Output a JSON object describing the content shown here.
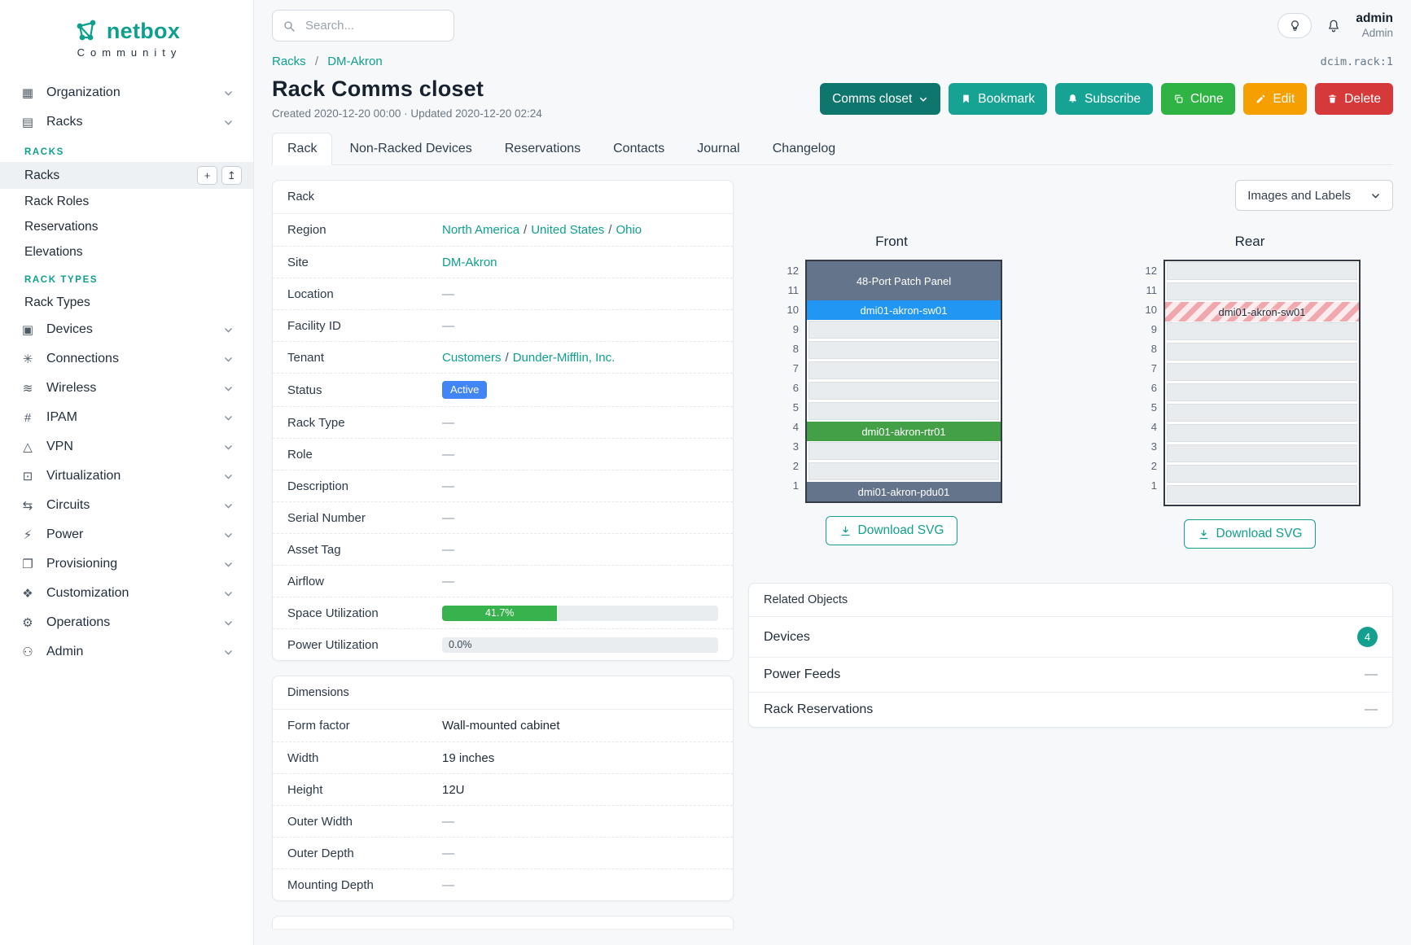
{
  "colors": {
    "accent": "#0e9f8f",
    "button_dark_teal": "#0f766e",
    "button_teal": "#16a394",
    "clone_green": "#2fb344",
    "edit_yellow": "#f59f00",
    "delete_red": "#d63939",
    "status_active": "#4285f4",
    "progress_green": "#37b24d",
    "count_badge": "#14a08f"
  },
  "sidebar": {
    "brand": {
      "name": "netbox",
      "tagline": "Community"
    },
    "items": [
      {
        "label": "Organization",
        "icon": "building-icon"
      },
      {
        "label": "Racks",
        "icon": "rack-icon",
        "expanded": true,
        "groups": [
          {
            "heading": "RACKS",
            "links": [
              {
                "label": "Racks",
                "active": true,
                "actions": [
                  {
                    "name": "add"
                  },
                  {
                    "name": "import"
                  }
                ]
              },
              {
                "label": "Rack Roles"
              },
              {
                "label": "Reservations"
              },
              {
                "label": "Elevations"
              }
            ]
          },
          {
            "heading": "RACK TYPES",
            "links": [
              {
                "label": "Rack Types"
              }
            ]
          }
        ]
      },
      {
        "label": "Devices",
        "icon": "devices-icon"
      },
      {
        "label": "Connections",
        "icon": "connections-icon"
      },
      {
        "label": "Wireless",
        "icon": "wireless-icon"
      },
      {
        "label": "IPAM",
        "icon": "ipam-icon"
      },
      {
        "label": "VPN",
        "icon": "vpn-icon"
      },
      {
        "label": "Virtualization",
        "icon": "virtualization-icon"
      },
      {
        "label": "Circuits",
        "icon": "circuits-icon"
      },
      {
        "label": "Power",
        "icon": "power-icon"
      },
      {
        "label": "Provisioning",
        "icon": "provisioning-icon"
      },
      {
        "label": "Customization",
        "icon": "customization-icon"
      },
      {
        "label": "Operations",
        "icon": "operations-icon"
      },
      {
        "label": "Admin",
        "icon": "admin-icon"
      }
    ]
  },
  "topbar": {
    "search_placeholder": "Search...",
    "user": {
      "name": "admin",
      "role": "Admin"
    }
  },
  "page": {
    "breadcrumb": [
      "Racks",
      "DM-Akron"
    ],
    "object_id": "dcim.rack:1",
    "title": "Rack Comms closet",
    "meta": "Created 2020-12-20 00:00 · Updated 2020-12-20 02:24",
    "actions": {
      "view_select": "Comms closet",
      "bookmark": "Bookmark",
      "subscribe": "Subscribe",
      "clone": "Clone",
      "edit": "Edit",
      "delete": "Delete"
    },
    "tabs": [
      {
        "label": "Rack",
        "active": true
      },
      {
        "label": "Non-Racked Devices"
      },
      {
        "label": "Reservations"
      },
      {
        "label": "Contacts"
      },
      {
        "label": "Journal"
      },
      {
        "label": "Changelog"
      }
    ]
  },
  "rack_card": {
    "title": "Rack",
    "rows": [
      {
        "label": "Region",
        "links": [
          "North America",
          "United States",
          "Ohio"
        ]
      },
      {
        "label": "Site",
        "links": [
          "DM-Akron"
        ]
      },
      {
        "label": "Location",
        "dash": "—"
      },
      {
        "label": "Facility ID",
        "dash": "—"
      },
      {
        "label": "Tenant",
        "links": [
          "Customers",
          "Dunder-Mifflin, Inc."
        ]
      },
      {
        "label": "Status",
        "badge": {
          "text": "Active",
          "color": "#4285f4"
        }
      },
      {
        "label": "Rack Type",
        "dash": "—"
      },
      {
        "label": "Role",
        "dash": "—"
      },
      {
        "label": "Description",
        "dash": "—"
      },
      {
        "label": "Serial Number",
        "dash": "—"
      },
      {
        "label": "Asset Tag",
        "dash": "—"
      },
      {
        "label": "Airflow",
        "dash": "—"
      },
      {
        "label": "Space Utilization",
        "progress": {
          "percent": 41.7,
          "text": "41.7%",
          "color": "#37b24d"
        }
      },
      {
        "label": "Power Utilization",
        "progress": {
          "percent": 0,
          "text": "0.0%",
          "color": "#37b24d"
        }
      }
    ]
  },
  "dimensions_card": {
    "title": "Dimensions",
    "rows": [
      {
        "label": "Form factor",
        "text": "Wall-mounted cabinet"
      },
      {
        "label": "Width",
        "text": "19 inches"
      },
      {
        "label": "Height",
        "text": "12U"
      },
      {
        "label": "Outer Width",
        "dash": "—"
      },
      {
        "label": "Outer Depth",
        "dash": "—"
      },
      {
        "label": "Mounting Depth",
        "dash": "—"
      }
    ]
  },
  "elevations": {
    "view_select": "Images and Labels",
    "download_label": "Download SVG",
    "hatch_colors": [
      "#f0a8ae",
      "#fdeced"
    ],
    "front": {
      "title": "Front",
      "units": 12,
      "slots": [
        {
          "span": 2,
          "label": "48-Port Patch Panel",
          "bg": "#64748b",
          "fg": "#ffffff"
        },
        {
          "span": 1,
          "label": "dmi01-akron-sw01",
          "bg": "#2196f3",
          "fg": "#ffffff"
        },
        {
          "span": 1
        },
        {
          "span": 1
        },
        {
          "span": 1
        },
        {
          "span": 1
        },
        {
          "span": 1
        },
        {
          "span": 1,
          "label": "dmi01-akron-rtr01",
          "bg": "#43a047",
          "fg": "#ffffff"
        },
        {
          "span": 1
        },
        {
          "span": 1
        },
        {
          "span": 1,
          "label": "dmi01-akron-pdu01",
          "bg": "#64748b",
          "fg": "#ffffff"
        }
      ]
    },
    "rear": {
      "title": "Rear",
      "units": 12,
      "slots": [
        {
          "span": 1
        },
        {
          "span": 1
        },
        {
          "span": 1,
          "label": "dmi01-akron-sw01",
          "hatched": true,
          "fg": "#22303c"
        },
        {
          "span": 1
        },
        {
          "span": 1
        },
        {
          "span": 1
        },
        {
          "span": 1
        },
        {
          "span": 1
        },
        {
          "span": 1
        },
        {
          "span": 1
        },
        {
          "span": 1
        },
        {
          "span": 1
        }
      ]
    }
  },
  "related": {
    "title": "Related Objects",
    "rows": [
      {
        "label": "Devices",
        "count": "4"
      },
      {
        "label": "Power Feeds",
        "dash": "—"
      },
      {
        "label": "Rack Reservations",
        "dash": "—"
      }
    ]
  }
}
